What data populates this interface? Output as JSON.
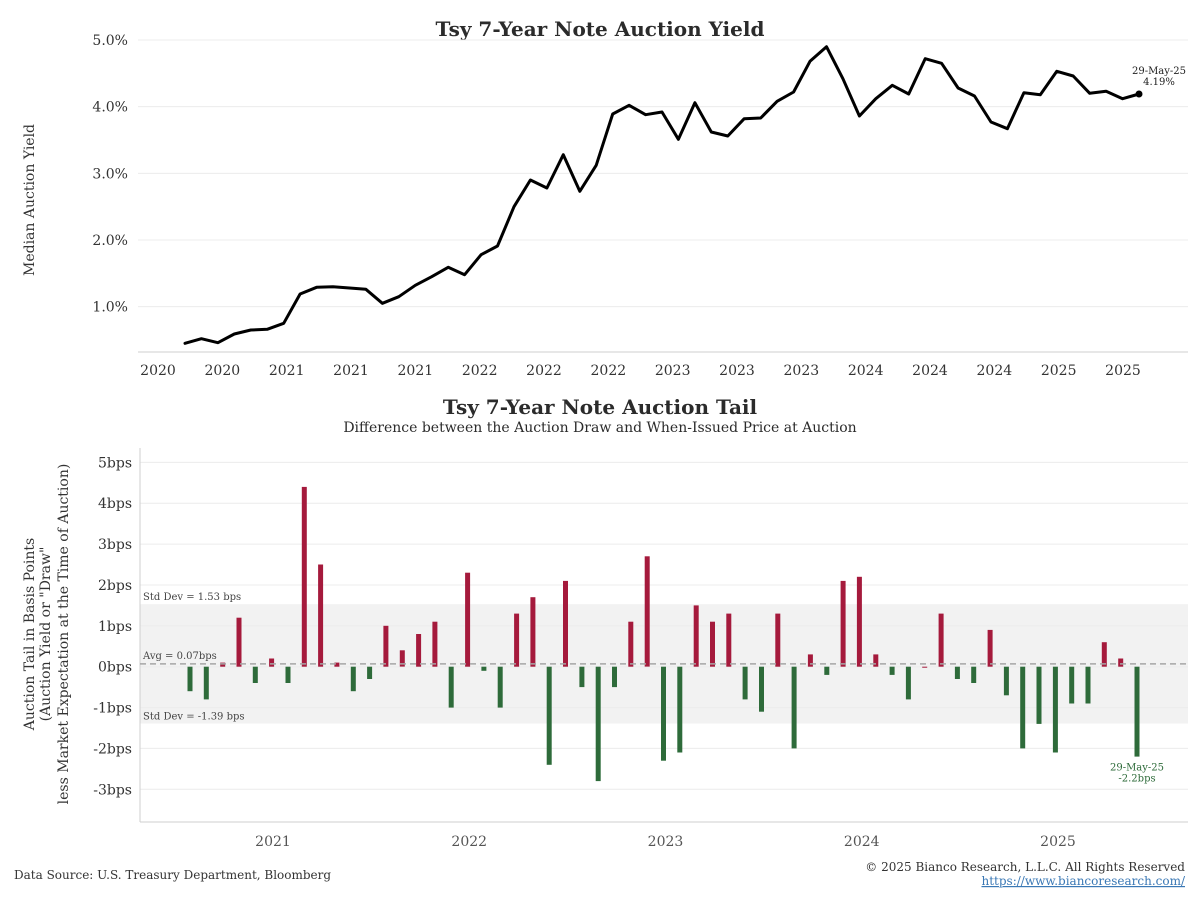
{
  "colors": {
    "line": "#000000",
    "positive_bar": "#a51a3c",
    "negative_bar": "#2e6b3a",
    "band": "#f2f2f2",
    "avg_line": "#a6a6a6",
    "link": "#3a78b5"
  },
  "footer": {
    "source": "Data Source: U.S. Treasury Department, Bloomberg",
    "copyright": "© 2025 Bianco Research, L.L.C. All Rights Reserved",
    "url": "https://www.biancoresearch.com/"
  },
  "chart_data": [
    {
      "type": "line",
      "title": "Tsy 7-Year Note Auction Yield",
      "ylabel": "Median Auction Yield",
      "xlabel": "",
      "ylim": [
        0.2,
        5.0
      ],
      "y_ticks": [
        "1.0%",
        "2.0%",
        "3.0%",
        "4.0%",
        "5.0%"
      ],
      "x_tick_labels": [
        "2020",
        "2020",
        "2021",
        "2021",
        "2021",
        "2022",
        "2022",
        "2022",
        "2023",
        "2023",
        "2023",
        "2024",
        "2024",
        "2024",
        "2025",
        "2025"
      ],
      "grid": true,
      "series": [
        {
          "values": [
            0.45,
            0.52,
            0.46,
            0.59,
            0.65,
            0.66,
            0.75,
            1.19,
            1.29,
            1.3,
            1.28,
            1.26,
            1.05,
            1.15,
            1.32,
            1.45,
            1.59,
            1.48,
            1.78,
            1.91,
            2.5,
            2.9,
            2.78,
            3.28,
            2.73,
            3.12,
            3.89,
            4.02,
            3.88,
            3.92,
            3.51,
            4.06,
            3.62,
            3.56,
            3.82,
            3.83,
            4.08,
            4.22,
            4.68,
            4.9,
            4.42,
            3.86,
            4.12,
            4.32,
            4.19,
            4.72,
            4.65,
            4.28,
            4.16,
            3.77,
            3.67,
            4.21,
            4.18,
            4.53,
            4.46,
            4.2,
            4.23,
            4.12,
            4.19
          ]
        }
      ],
      "annotation": {
        "date": "29-May-25",
        "value": "4.19%"
      }
    },
    {
      "type": "bar",
      "title": "Tsy 7-Year Note Auction Tail",
      "subtitle": "Difference between the Auction Draw and When-Issued Price at Auction",
      "ylabel_lines": [
        "Auction Tail in Basis Points",
        "(Auction Yield or \"Draw\"",
        "less Market Expectation at the Time of Auction)"
      ],
      "ylim": [
        -3.8,
        5.4
      ],
      "y_ticks": [
        "-3bps",
        "-2bps",
        "-1bps",
        "0bps",
        "1bps",
        "2bps",
        "3bps",
        "4bps",
        "5bps"
      ],
      "x_tick_labels": [
        "2021",
        "2022",
        "2023",
        "2024",
        "2025"
      ],
      "grid": true,
      "values": [
        -0.6,
        -0.8,
        0.1,
        1.2,
        -0.4,
        0.2,
        -0.4,
        4.4,
        2.5,
        0.1,
        -0.6,
        -0.3,
        1.0,
        0.4,
        0.8,
        1.1,
        -1.0,
        2.3,
        -0.1,
        -1.0,
        1.3,
        1.7,
        -2.4,
        2.1,
        -0.5,
        -2.8,
        -0.5,
        1.1,
        2.7,
        -2.3,
        -2.1,
        1.5,
        1.1,
        1.3,
        -0.8,
        -1.1,
        1.3,
        -2.0,
        0.3,
        -0.2,
        2.1,
        2.2,
        0.3,
        -0.2,
        -0.8,
        0.0,
        1.3,
        -0.3,
        -0.4,
        0.9,
        -0.7,
        -2.0,
        -1.4,
        -2.1,
        -0.9,
        -0.9,
        0.6,
        0.2,
        -2.2
      ],
      "avg": {
        "value": 0.07,
        "label": "Avg = 0.07bps"
      },
      "std_upper": {
        "value": 1.53,
        "label": "Std Dev = 1.53 bps"
      },
      "std_lower": {
        "value": -1.39,
        "label": "Std Dev = -1.39 bps"
      },
      "annotation": {
        "date": "29-May-25",
        "value": "-2.2bps"
      }
    }
  ]
}
